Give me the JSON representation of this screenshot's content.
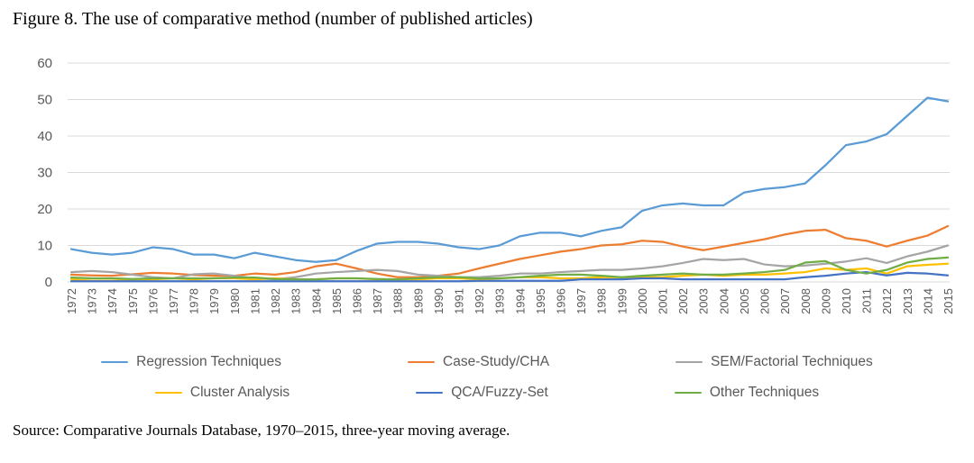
{
  "figure_title": "Figure 8. The use of comparative method (number of published articles)",
  "source_note": "Source: Comparative Journals Database, 1970–2015, three-year moving average.",
  "chart_data": {
    "type": "line",
    "title": "Figure 8. The use of comparative method (number of published articles)",
    "xlabel": "",
    "ylabel": "",
    "ylim": [
      0,
      60
    ],
    "yticks": [
      0,
      10,
      20,
      30,
      40,
      50,
      60
    ],
    "grid": true,
    "legend_position": "bottom",
    "gridline_color": "#D9D9D9",
    "x": [
      1972,
      1973,
      1974,
      1975,
      1976,
      1977,
      1978,
      1979,
      1980,
      1981,
      1982,
      1983,
      1984,
      1985,
      1986,
      1987,
      1988,
      1989,
      1990,
      1991,
      1992,
      1993,
      1994,
      1995,
      1996,
      1997,
      1998,
      1999,
      2000,
      2001,
      2002,
      2003,
      2004,
      2005,
      2006,
      2007,
      2008,
      2009,
      2010,
      2011,
      2012,
      2013,
      2014,
      2015
    ],
    "series": [
      {
        "name": "Regression Techniques",
        "color": "#5B9BD5",
        "values": [
          9,
          8,
          7.5,
          8,
          9.5,
          9,
          7.5,
          7.5,
          6.5,
          8,
          7,
          6,
          5.5,
          6,
          8.5,
          10.5,
          11,
          11,
          10.5,
          9.5,
          9,
          10,
          12.5,
          13.5,
          13.5,
          12.5,
          14,
          15,
          19.5,
          21,
          21.5,
          21,
          21,
          24.5,
          25.5,
          26,
          27,
          32,
          37.5,
          38.5,
          40.5,
          45.5,
          50.5,
          49.5
        ]
      },
      {
        "name": "Case-Study/CHA",
        "color": "#ED7D31",
        "values": [
          2,
          1.8,
          1.7,
          2.1,
          2.5,
          2.3,
          1.9,
          1.7,
          1.7,
          2.3,
          2,
          2.7,
          4.3,
          5,
          3.7,
          2.3,
          1.3,
          1.3,
          1.7,
          2.3,
          3.7,
          5,
          6.3,
          7.3,
          8.3,
          9,
          10,
          10.3,
          11.3,
          11,
          9.7,
          8.7,
          9.7,
          10.7,
          11.7,
          13,
          14,
          14.3,
          12,
          11.3,
          9.7,
          11.3,
          12.7,
          15.3
        ]
      },
      {
        "name": "SEM/Factorial Techniques",
        "color": "#A5A5A5",
        "values": [
          2.7,
          3,
          2.7,
          2,
          1.3,
          1,
          2.1,
          2.3,
          1.7,
          1,
          0.7,
          1.3,
          2.3,
          2.7,
          3,
          3.3,
          3,
          2,
          1.7,
          1.3,
          1.3,
          1.7,
          2.3,
          2.3,
          2.7,
          3,
          3.3,
          3.3,
          3.7,
          4.3,
          5.2,
          6.3,
          6,
          6.3,
          4.8,
          4.3,
          4.5,
          5,
          5.6,
          6.5,
          5.2,
          7,
          8.3,
          10
        ]
      },
      {
        "name": "Cluster Analysis",
        "color": "#FFC000",
        "values": [
          0.7,
          0.3,
          0.3,
          0.7,
          0.7,
          1,
          0.7,
          1,
          1,
          0.7,
          1,
          0.7,
          0.7,
          1,
          1,
          0.7,
          0.7,
          0.7,
          1,
          1,
          0.7,
          1,
          1.3,
          1.3,
          1,
          1,
          1.3,
          1.3,
          1.3,
          1.3,
          1.7,
          2,
          1.7,
          2,
          2,
          2.3,
          2.7,
          3.7,
          3.3,
          3.7,
          2.3,
          4.3,
          4.7,
          5
        ]
      },
      {
        "name": "QCA/Fuzzy-Set",
        "color": "#4472C4",
        "values": [
          0.2,
          0.2,
          0.2,
          0.2,
          0.2,
          0.2,
          0.2,
          0.2,
          0.2,
          0.2,
          0.2,
          0.2,
          0.2,
          0.2,
          0.2,
          0.2,
          0.2,
          0.2,
          0.2,
          0.2,
          0.3,
          0.3,
          0.3,
          0.3,
          0.3,
          0.7,
          0.7,
          0.7,
          1,
          1,
          0.7,
          0.7,
          0.7,
          0.7,
          0.7,
          0.7,
          1.3,
          1.7,
          2.3,
          2.7,
          1.8,
          2.5,
          2.3,
          1.8
        ]
      },
      {
        "name": "Other Techniques",
        "color": "#70AD47",
        "values": [
          1.2,
          1,
          1,
          0.8,
          1,
          1,
          1,
          1,
          1.2,
          1.2,
          0.8,
          0.7,
          0.7,
          1,
          1,
          0.8,
          0.7,
          1,
          1.3,
          1.3,
          1,
          1,
          1.3,
          1.7,
          2,
          2,
          1.7,
          1.3,
          1.7,
          2,
          2.3,
          2,
          2,
          2.3,
          2.7,
          3.3,
          5.3,
          5.7,
          3.3,
          2.3,
          3.3,
          5.3,
          6.3,
          6.7
        ]
      }
    ]
  }
}
